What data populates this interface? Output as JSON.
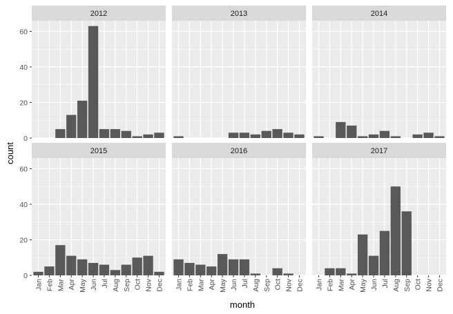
{
  "chart_data": {
    "type": "bar",
    "layout": "facet-grid 2x3",
    "xlabel": "month",
    "ylabel": "count",
    "ylim": [
      0,
      66
    ],
    "y_ticks": [
      0,
      20,
      40,
      60
    ],
    "categories": [
      "Jan",
      "Feb",
      "Mar",
      "Apr",
      "May",
      "Jun",
      "Jul",
      "Aug",
      "Sep",
      "Oct",
      "Nov",
      "Dec"
    ],
    "grid": true,
    "colors": {
      "bar": "#595959",
      "panel": "#ebebeb",
      "strip": "#d9d9d9",
      "grid": "#ffffff"
    },
    "panels": [
      {
        "title": "2012",
        "values": [
          0,
          0,
          5,
          13,
          21,
          63,
          5,
          5,
          4,
          1,
          2,
          3
        ]
      },
      {
        "title": "2013",
        "values": [
          1,
          0,
          0,
          0,
          0,
          3,
          3,
          2,
          4,
          5,
          3,
          2
        ]
      },
      {
        "title": "2014",
        "values": [
          1,
          0,
          9,
          7,
          1,
          2,
          4,
          1,
          0,
          2,
          3,
          1
        ]
      },
      {
        "title": "2015",
        "values": [
          2,
          5,
          17,
          11,
          9,
          7,
          6,
          3,
          6,
          10,
          11,
          2
        ]
      },
      {
        "title": "2016",
        "values": [
          9,
          7,
          6,
          5,
          12,
          9,
          9,
          1,
          0,
          4,
          1,
          0
        ]
      },
      {
        "title": "2017",
        "values": [
          0,
          4,
          4,
          1,
          23,
          11,
          25,
          50,
          36,
          0,
          0,
          0
        ]
      }
    ]
  }
}
